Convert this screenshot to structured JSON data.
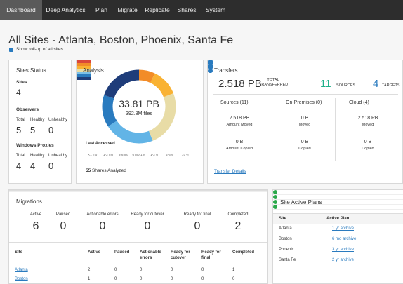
{
  "nav": [
    "Dashboard",
    "Deep Analytics",
    "Plan",
    "Migrate",
    "Replicate",
    "Shares",
    "System"
  ],
  "header": {
    "title": "All Sites - Atlanta, Boston, Phoenix, Santa Fe",
    "rollup": "Show roll-up of all sites"
  },
  "sites_status": {
    "title": "Sites Status",
    "sites_label": "Sites",
    "sites": "4",
    "observers": {
      "label": "Observers",
      "col_labels": [
        "Total",
        "Healthy",
        "Unhealthy"
      ],
      "values": [
        "5",
        "5",
        "0"
      ]
    },
    "proxies": {
      "label": "Windows Proxies",
      "col_labels": [
        "Total",
        "Healthy",
        "Unhealthy"
      ],
      "values": [
        "4",
        "4",
        "0"
      ]
    }
  },
  "analysis": {
    "title": "Analysis",
    "total": "33.81 PB",
    "files": "392.8M files",
    "last_accessed": "Last Accessed",
    "legend": [
      "<1 mo",
      "1-3 mo",
      "3-6 mo",
      "6 mo-1 yr",
      "1-2 yr",
      "2-3 yr",
      ">3 yr"
    ],
    "shares": "55",
    "shares_label": "Shares Analyzed"
  },
  "transfers": {
    "title": "Transfers",
    "total": "2.518 PB",
    "total_label": "TOTAL TRANSFERRED",
    "sources": "11",
    "sources_label": "SOURCES",
    "targets": "4",
    "targets_label": "TARGETS",
    "columns": [
      {
        "title": "Sources (11)",
        "moved": "2.518 PB",
        "moved_label": "Amount Moved",
        "copied": "0 B",
        "copied_label": "Amount Copied"
      },
      {
        "title": "On-Premises (0)",
        "moved": "0 B",
        "moved_label": "Moved",
        "copied": "0 B",
        "copied_label": "Copied"
      },
      {
        "title": "Cloud (4)",
        "moved": "2.518 PB",
        "moved_label": "Moved",
        "copied": "0 B",
        "copied_label": "Copied"
      }
    ],
    "link": "Transfer Details"
  },
  "migrations": {
    "title": "Migrations",
    "summary": [
      {
        "label": "Active",
        "value": "6"
      },
      {
        "label": "Paused",
        "value": "0"
      },
      {
        "label": "Actionable errors",
        "value": "0"
      },
      {
        "label": "Ready for cutover",
        "value": "0"
      },
      {
        "label": "Ready for final",
        "value": "0"
      },
      {
        "label": "Completed",
        "value": "2"
      }
    ],
    "table": {
      "headers": [
        "Site",
        "Active",
        "Paused",
        "Actionable errors",
        "Ready for cutover",
        "Ready for final",
        "Completed"
      ],
      "rows": [
        [
          "Atlanta",
          "2",
          "0",
          "0",
          "0",
          "0",
          "1"
        ],
        [
          "Boston",
          "1",
          "0",
          "0",
          "0",
          "0",
          "0"
        ]
      ]
    }
  },
  "site_plans": {
    "title": "Site Active Plans",
    "headers": [
      "Site",
      "Active Plan"
    ],
    "rows": [
      [
        "Atlanta",
        "1 yr archive"
      ],
      [
        "Boston",
        "6 mo archive"
      ],
      [
        "Phoenix",
        "3 yr archive"
      ],
      [
        "Santa Fe",
        "2 yr archive"
      ]
    ]
  }
}
